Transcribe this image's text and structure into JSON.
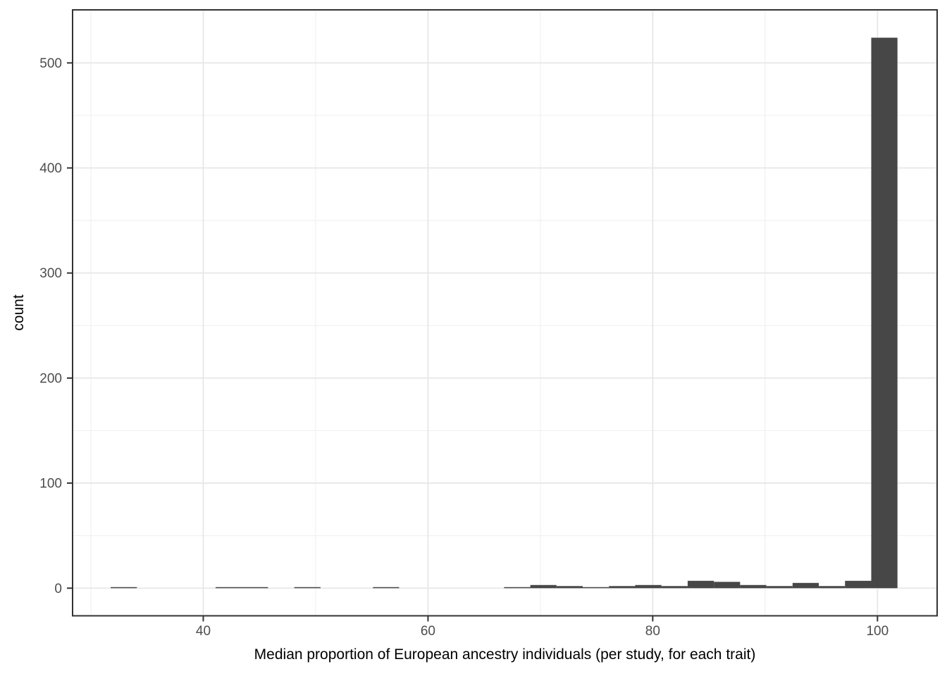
{
  "figure_style": {
    "background": "#ffffff",
    "bar_fill": "#474747",
    "panel_border": "#333333",
    "grid_major": "#e7e7e7",
    "grid_minor": "#f1f1f1",
    "tick_color": "#333333",
    "tick_label_color": "#4d4d4d",
    "title_color": "#000000"
  },
  "chart_data": {
    "type": "bar",
    "subtype": "histogram",
    "title": "",
    "xlabel": "Median proportion of European ancestry individuals (per study, for each trait)",
    "ylabel": "count",
    "grid": "on",
    "legend": "none",
    "x_ticks": [
      40,
      60,
      80,
      100
    ],
    "x_minor_gridlines": [
      30,
      50,
      70,
      90
    ],
    "y_ticks": [
      0,
      100,
      200,
      300,
      400,
      500
    ],
    "y_minor_gridlines": [
      50,
      150,
      250,
      350,
      450
    ],
    "panel_xlim": [
      28.37,
      105.31
    ],
    "panel_ylim": [
      -26.3,
      550.5
    ],
    "bin_start": 31.76,
    "bin_width": 2.334,
    "bin_counts": [
      1,
      0,
      0,
      0,
      1,
      1,
      0,
      1,
      0,
      0,
      1,
      0,
      0,
      0,
      0,
      1,
      3,
      2,
      1,
      2,
      3,
      2,
      7,
      6,
      3,
      2,
      5,
      2,
      7,
      524
    ],
    "max_bar": {
      "x_range": [
        99.46,
        101.8
      ],
      "count": 524
    },
    "notable_values": {
      "tall_bar_count": 524,
      "y_axis_max_tick": 500,
      "x_axis_span": "about 32 to 102 percent"
    }
  }
}
